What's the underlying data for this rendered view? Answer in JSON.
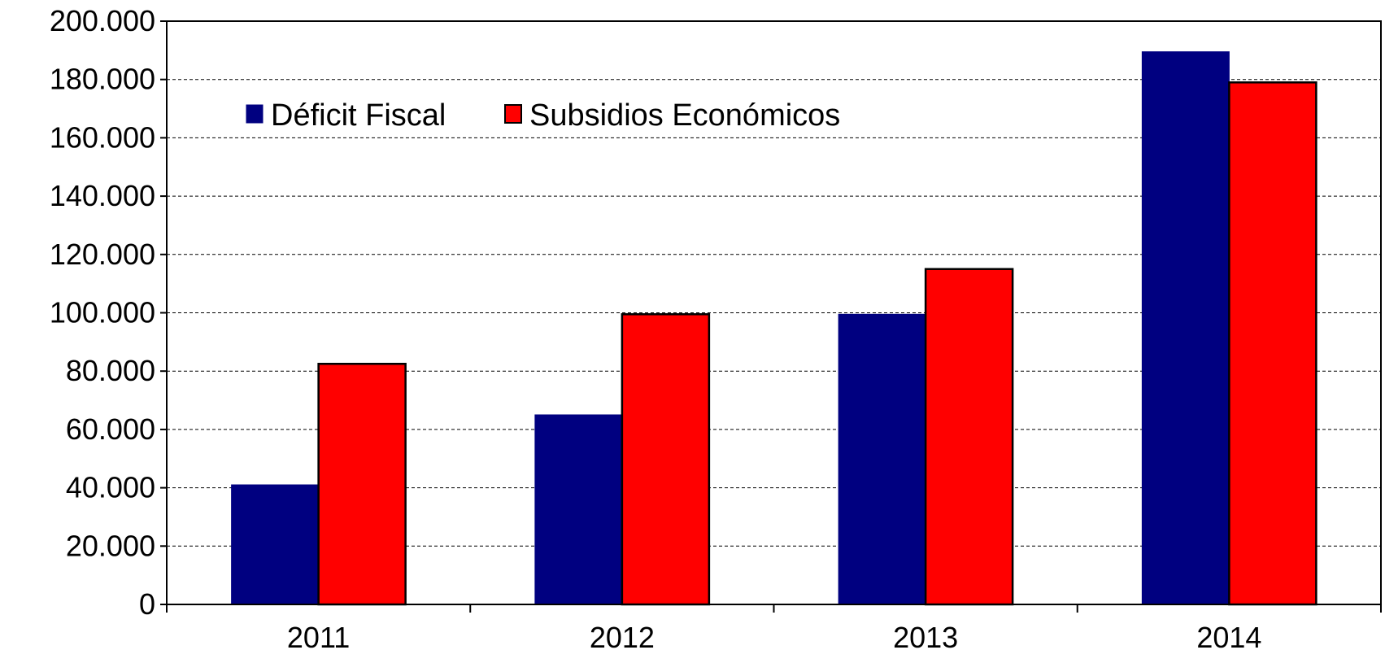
{
  "chart_data": {
    "type": "bar",
    "title": "",
    "xlabel": "",
    "ylabel": "",
    "categories": [
      "2011",
      "2012",
      "2013",
      "2014"
    ],
    "series": [
      {
        "name": "Déficit Fiscal",
        "color": "#000080",
        "values": [
          41000,
          65000,
          99500,
          189500
        ]
      },
      {
        "name": "Subsidios Económicos",
        "color": "#FF0000",
        "values": [
          82500,
          99500,
          115000,
          179000
        ]
      }
    ],
    "ylim": [
      0,
      200000
    ],
    "y_ticks": [
      0,
      20000,
      40000,
      60000,
      80000,
      100000,
      120000,
      140000,
      160000,
      180000,
      200000
    ],
    "y_tick_labels": [
      "0",
      "20.000",
      "40.000",
      "60.000",
      "80.000",
      "100.000",
      "120.000",
      "140.000",
      "160.000",
      "180.000",
      "200.000"
    ],
    "grid": "horizontal-dashed",
    "legend_position": "top-left"
  }
}
